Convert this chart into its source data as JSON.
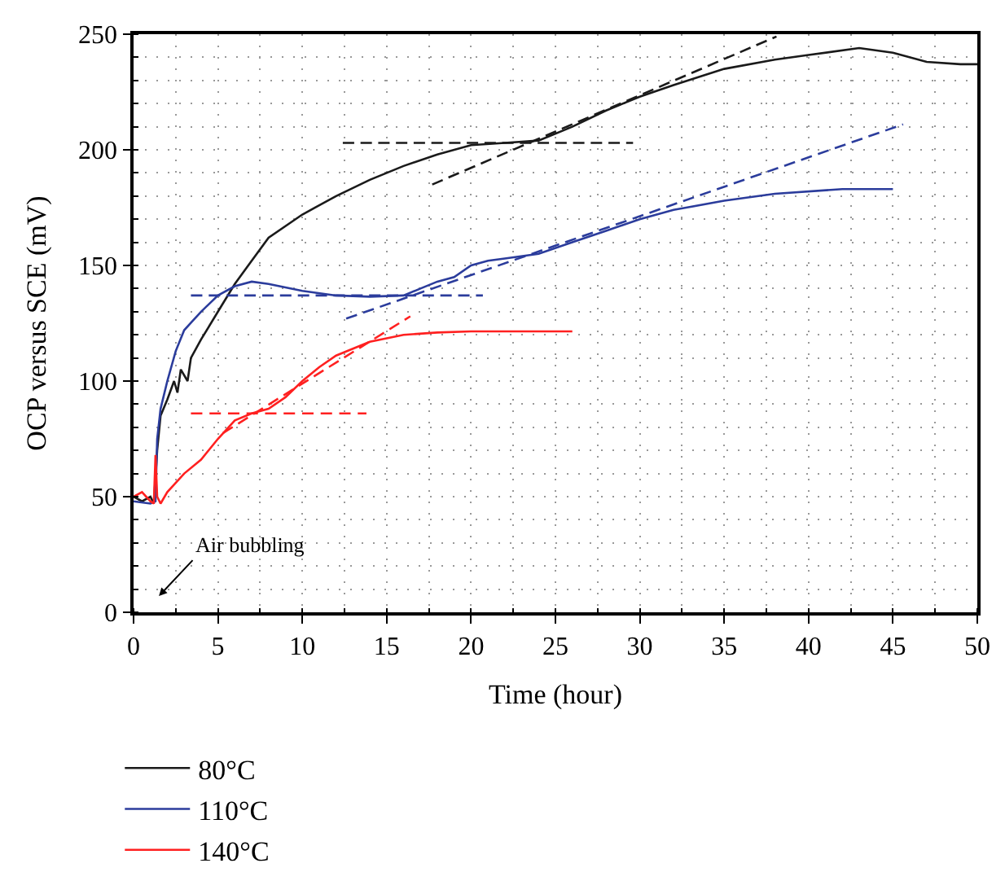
{
  "chart_data": {
    "type": "line",
    "xlabel": "Time (hour)",
    "ylabel": "OCP versus SCE (mV)",
    "xlim": [
      0,
      50
    ],
    "xticks": [
      0,
      5,
      10,
      15,
      20,
      25,
      30,
      35,
      40,
      45,
      50
    ],
    "ylim": [
      0,
      250
    ],
    "yticks": [
      0,
      50,
      100,
      150,
      200,
      250
    ],
    "grid": true,
    "legend": "bottom left",
    "marker": "none",
    "line_style": "solid",
    "annotations": [
      "Air bubbling"
    ],
    "series": [
      {
        "name": "80°C",
        "color": "#1a1a1a",
        "x": [
          0,
          0.5,
          1,
          1.2,
          1.4,
          1.6,
          2,
          2.4,
          2.6,
          2.8,
          3.2,
          3.4,
          4,
          5,
          6,
          7,
          8,
          10,
          12,
          14,
          16,
          18,
          20,
          22,
          24,
          26,
          28,
          30,
          32,
          35,
          38,
          40,
          43,
          45,
          47,
          49,
          50
        ],
        "values": [
          50,
          48,
          50,
          47,
          70,
          85,
          92,
          100,
          95,
          105,
          100,
          110,
          118,
          130,
          142,
          152,
          162,
          172,
          180,
          187,
          193,
          198,
          202,
          203,
          204,
          210,
          217,
          223,
          228,
          235,
          239,
          241,
          244,
          242,
          238,
          237,
          237
        ]
      },
      {
        "name": "110°C",
        "color": "#2b3c9c",
        "x": [
          0,
          1,
          1.3,
          1.4,
          1.6,
          2,
          2.5,
          3,
          3.5,
          4,
          5,
          6,
          7,
          8,
          10,
          12,
          14,
          16,
          17,
          18,
          19,
          20,
          21,
          22,
          24,
          26,
          28,
          30,
          32,
          35,
          38,
          42,
          45
        ],
        "values": [
          48,
          47,
          48,
          75,
          88,
          100,
          113,
          122,
          126,
          130,
          137,
          141,
          143,
          142,
          139,
          137,
          136.5,
          137,
          140,
          143,
          145,
          150,
          152,
          153,
          155,
          160,
          165,
          170,
          174,
          178,
          181,
          183,
          183
        ]
      },
      {
        "name": "140°C",
        "color": "#ff2020",
        "x": [
          0,
          0.5,
          1,
          1.2,
          1.3,
          1.4,
          1.6,
          2,
          3,
          4,
          5,
          6,
          7,
          8,
          9,
          10,
          11,
          12,
          14,
          16,
          18,
          20,
          22,
          26
        ],
        "values": [
          50,
          52,
          48,
          47,
          68,
          50,
          47,
          52,
          60,
          66,
          75,
          83,
          86,
          88,
          93,
          100,
          106,
          111,
          117,
          120,
          121,
          121.5,
          121.5,
          121.5
        ]
      },
      {
        "color": "#1a1a1a",
        "line_style": "dashed",
        "x": [
          12.4,
          29.6
        ],
        "values": [
          203,
          203
        ]
      },
      {
        "color": "#1a1a1a",
        "line_style": "dashed",
        "x": [
          17.7,
          38.1
        ],
        "values": [
          185,
          249
        ]
      },
      {
        "color": "#2b3c9c",
        "line_style": "dashed",
        "x": [
          3.4,
          20.7
        ],
        "values": [
          137,
          137
        ]
      },
      {
        "color": "#2b3c9c",
        "line_style": "dashed",
        "x": [
          12.6,
          45.6
        ],
        "values": [
          127,
          211
        ]
      },
      {
        "color": "#ff2020",
        "line_style": "dashed",
        "x": [
          3.4,
          13.8
        ],
        "values": [
          86,
          86
        ]
      },
      {
        "color": "#ff2020",
        "line_style": "dashed",
        "x": [
          5.3,
          16.4
        ],
        "values": [
          77.5,
          128
        ]
      }
    ]
  }
}
